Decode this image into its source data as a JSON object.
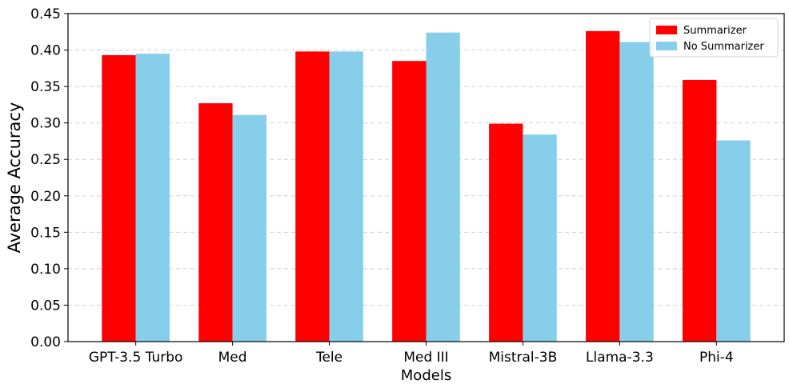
{
  "chart_data": {
    "type": "bar",
    "title": "",
    "xlabel": "Models",
    "ylabel": "Average Accuracy",
    "categories": [
      "GPT-3.5 Turbo",
      "Med",
      "Tele",
      "Med III",
      "Mistral-3B",
      "Llama-3.3",
      "Phi-4"
    ],
    "series": [
      {
        "name": "Summarizer",
        "color": "#ff0000",
        "values": [
          0.393,
          0.327,
          0.398,
          0.385,
          0.299,
          0.426,
          0.359
        ]
      },
      {
        "name": "No Summarizer",
        "color": "#87ceeb",
        "values": [
          0.395,
          0.311,
          0.398,
          0.424,
          0.284,
          0.411,
          0.276
        ]
      }
    ],
    "ylim": [
      0,
      0.45
    ],
    "yticks": [
      "0.00",
      "0.05",
      "0.10",
      "0.15",
      "0.20",
      "0.25",
      "0.30",
      "0.35",
      "0.40",
      "0.45"
    ],
    "grid": "y-dashed",
    "legend_position": "top-right"
  }
}
